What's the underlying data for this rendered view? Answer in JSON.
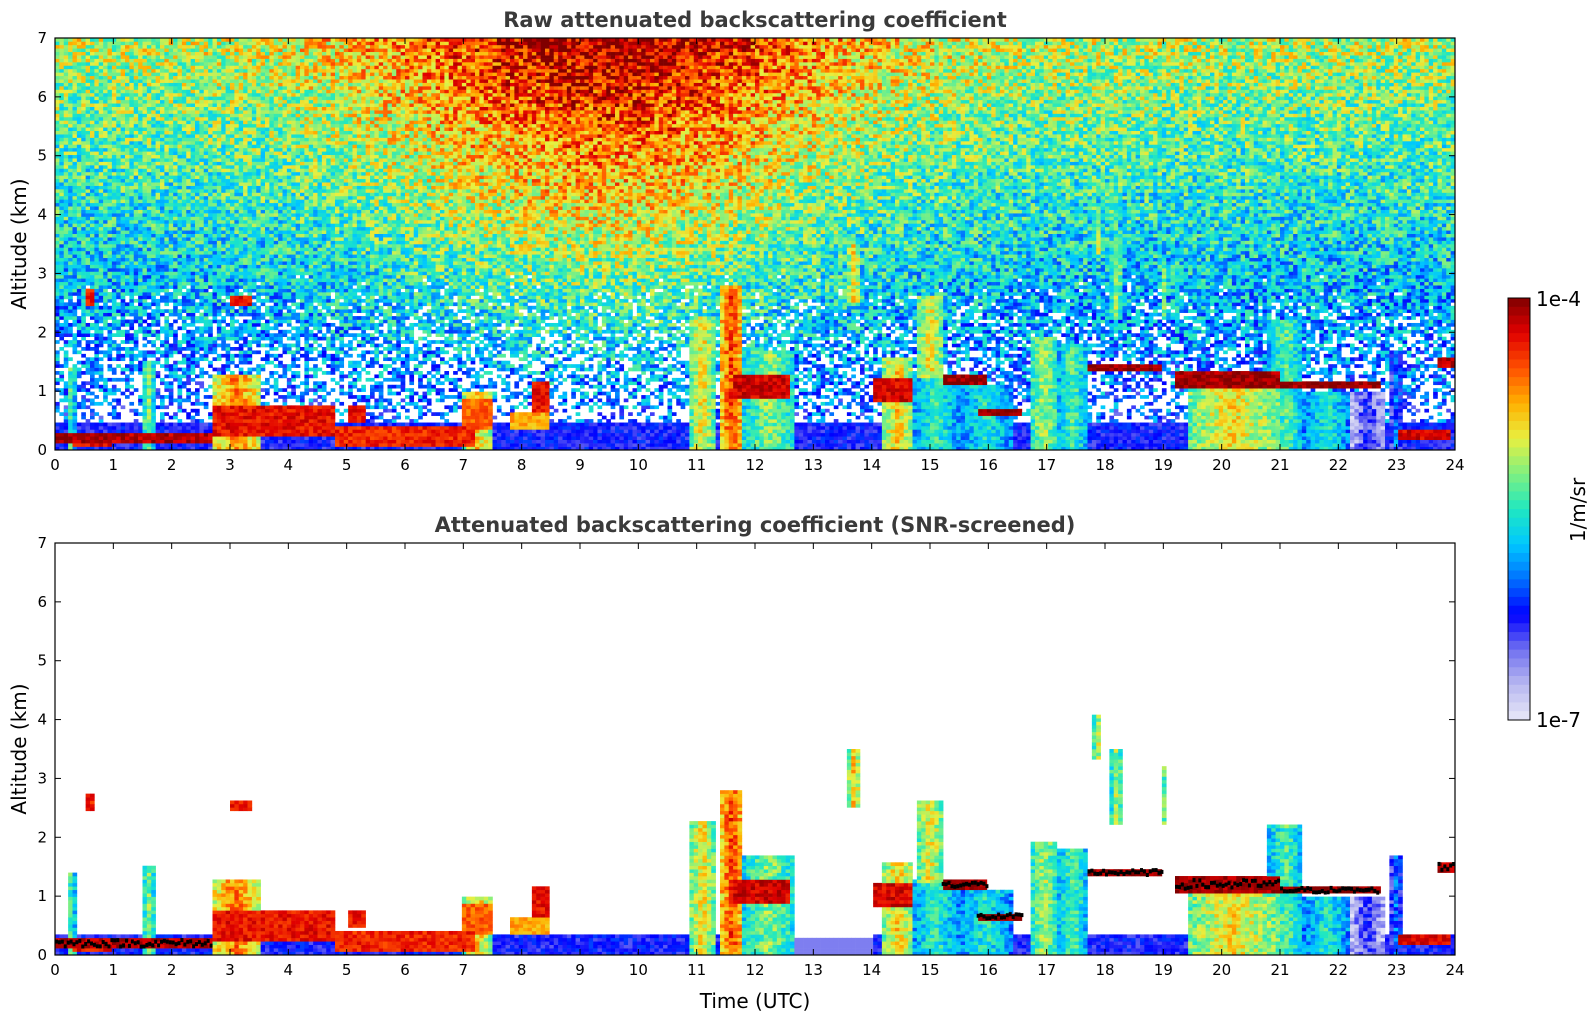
{
  "chart_data": [
    {
      "type": "heatmap",
      "title": "Raw attenuated backscattering coefficient",
      "xlabel": "",
      "ylabel": "Altitude (km)",
      "xlim": [
        0,
        24
      ],
      "ylim": [
        0,
        7
      ],
      "x_ticks": [
        "0",
        "1",
        "2",
        "3",
        "4",
        "5",
        "6",
        "7",
        "8",
        "9",
        "10",
        "11",
        "12",
        "13",
        "14",
        "15",
        "16",
        "17",
        "18",
        "19",
        "20",
        "21",
        "22",
        "23",
        "24"
      ],
      "y_ticks": [
        "0",
        "1",
        "2",
        "3",
        "4",
        "5",
        "6",
        "7"
      ],
      "screened": false
    },
    {
      "type": "heatmap",
      "title": "Attenuated backscattering coefficient (SNR-screened)",
      "xlabel": "Time (UTC)",
      "ylabel": "Altitude (km)",
      "xlim": [
        0,
        24
      ],
      "ylim": [
        0,
        7
      ],
      "x_ticks": [
        "0",
        "1",
        "2",
        "3",
        "4",
        "5",
        "6",
        "7",
        "8",
        "9",
        "10",
        "11",
        "12",
        "13",
        "14",
        "15",
        "16",
        "17",
        "18",
        "19",
        "20",
        "21",
        "22",
        "23",
        "24"
      ],
      "y_ticks": [
        "0",
        "1",
        "2",
        "3",
        "4",
        "5",
        "6",
        "7"
      ],
      "screened": true
    }
  ],
  "colorbar": {
    "label": "1/m/sr",
    "max_label": "1e-4",
    "min_label": "1e-7",
    "scale": "log",
    "range": [
      1e-07,
      0.0001
    ],
    "colormap": [
      "#e8e8f8",
      "#b8b8f0",
      "#7070f0",
      "#0000ff",
      "#0070ff",
      "#00c8ff",
      "#20e8c0",
      "#80f080",
      "#e8f040",
      "#ffb000",
      "#ff5000",
      "#e00000",
      "#800000"
    ]
  },
  "features": {
    "cloud_layers": [
      {
        "t0": 0.0,
        "t1": 2.7,
        "alt": 0.2,
        "th": 0.2,
        "lvl": 0.95
      },
      {
        "t0": 0.3,
        "t1": 1.0,
        "alt": 0.15,
        "th": 0.15,
        "lvl": 0.9
      },
      {
        "t0": 2.7,
        "t1": 4.8,
        "alt": 0.5,
        "th": 0.5,
        "lvl": 0.9
      },
      {
        "t0": 4.8,
        "t1": 7.2,
        "alt": 0.25,
        "th": 0.35,
        "lvl": 0.88
      },
      {
        "t0": 5.0,
        "t1": 5.3,
        "alt": 0.6,
        "th": 0.3,
        "lvl": 0.9
      },
      {
        "t0": 7.0,
        "t1": 7.5,
        "alt": 0.6,
        "th": 0.5,
        "lvl": 0.82
      },
      {
        "t0": 7.8,
        "t1": 8.5,
        "alt": 0.5,
        "th": 0.3,
        "lvl": 0.75
      },
      {
        "t0": 8.2,
        "t1": 8.5,
        "alt": 0.9,
        "th": 0.5,
        "lvl": 0.9
      },
      {
        "t0": 11.6,
        "t1": 12.6,
        "alt": 1.1,
        "th": 0.4,
        "lvl": 0.93
      },
      {
        "t0": 14.0,
        "t1": 14.7,
        "alt": 1.0,
        "th": 0.4,
        "lvl": 0.92
      },
      {
        "t0": 15.2,
        "t1": 16.0,
        "alt": 1.2,
        "th": 0.15,
        "lvl": 0.98
      },
      {
        "t0": 15.8,
        "t1": 16.6,
        "alt": 0.65,
        "th": 0.15,
        "lvl": 0.98
      },
      {
        "t0": 17.7,
        "t1": 19.0,
        "alt": 1.4,
        "th": 0.15,
        "lvl": 0.98
      },
      {
        "t0": 19.2,
        "t1": 21.0,
        "alt": 1.2,
        "th": 0.25,
        "lvl": 0.97
      },
      {
        "t0": 21.0,
        "t1": 22.7,
        "alt": 1.1,
        "th": 0.15,
        "lvl": 0.98
      },
      {
        "t0": 23.0,
        "t1": 23.9,
        "alt": 0.25,
        "th": 0.15,
        "lvl": 0.92
      },
      {
        "t0": 23.7,
        "t1": 24.0,
        "alt": 1.5,
        "th": 0.2,
        "lvl": 0.95
      },
      {
        "t0": 3.0,
        "t1": 3.4,
        "alt": 2.55,
        "th": 0.15,
        "lvl": 0.9
      },
      {
        "t0": 0.55,
        "t1": 0.7,
        "alt": 2.6,
        "th": 0.25,
        "lvl": 0.88
      }
    ],
    "plumes": [
      {
        "t0": 0.2,
        "t1": 0.35,
        "a0": 0,
        "a1": 1.4,
        "lvl": 0.55
      },
      {
        "t0": 1.5,
        "t1": 1.7,
        "a0": 0,
        "a1": 1.5,
        "lvl": 0.6
      },
      {
        "t0": 10.9,
        "t1": 11.3,
        "a0": 0,
        "a1": 2.3,
        "lvl": 0.7
      },
      {
        "t0": 11.4,
        "t1": 11.8,
        "a0": 0,
        "a1": 2.8,
        "lvl": 0.85
      },
      {
        "t0": 11.8,
        "t1": 12.7,
        "a0": 0,
        "a1": 1.7,
        "lvl": 0.6
      },
      {
        "t0": 14.2,
        "t1": 14.7,
        "a0": 0,
        "a1": 1.6,
        "lvl": 0.72
      },
      {
        "t0": 14.7,
        "t1": 15.5,
        "a0": 0,
        "a1": 1.3,
        "lvl": 0.52
      },
      {
        "t0": 14.8,
        "t1": 15.2,
        "a0": 1.2,
        "a1": 2.6,
        "lvl": 0.7
      },
      {
        "t0": 15.5,
        "t1": 16.4,
        "a0": 0,
        "a1": 1.1,
        "lvl": 0.5
      },
      {
        "t0": 16.7,
        "t1": 17.2,
        "a0": 0,
        "a1": 1.9,
        "lvl": 0.62
      },
      {
        "t0": 17.2,
        "t1": 17.7,
        "a0": 0,
        "a1": 1.8,
        "lvl": 0.55
      },
      {
        "t0": 13.6,
        "t1": 13.8,
        "a0": 2.5,
        "a1": 3.5,
        "lvl": 0.72
      },
      {
        "t0": 17.8,
        "t1": 17.95,
        "a0": 3.3,
        "a1": 4.1,
        "lvl": 0.65
      },
      {
        "t0": 18.1,
        "t1": 18.3,
        "a0": 2.2,
        "a1": 3.5,
        "lvl": 0.62
      },
      {
        "t0": 18.95,
        "t1": 19.05,
        "a0": 2.2,
        "a1": 3.2,
        "lvl": 0.6
      },
      {
        "t0": 19.4,
        "t1": 21.0,
        "a0": 0,
        "a1": 1.1,
        "lvl": 0.7
      },
      {
        "t0": 20.8,
        "t1": 21.4,
        "a0": 0,
        "a1": 2.2,
        "lvl": 0.55
      },
      {
        "t0": 21.4,
        "t1": 22.2,
        "a0": 0,
        "a1": 1.0,
        "lvl": 0.5
      },
      {
        "t0": 22.2,
        "t1": 22.8,
        "a0": 0,
        "a1": 1.0,
        "lvl": 0.22
      },
      {
        "t0": 22.9,
        "t1": 23.1,
        "a0": 0,
        "a1": 1.7,
        "lvl": 0.35
      },
      {
        "t0": 7.0,
        "t1": 7.5,
        "a0": 0,
        "a1": 1.0,
        "lvl": 0.72
      },
      {
        "t0": 2.7,
        "t1": 3.5,
        "a0": 0,
        "a1": 1.3,
        "lvl": 0.8
      }
    ]
  }
}
